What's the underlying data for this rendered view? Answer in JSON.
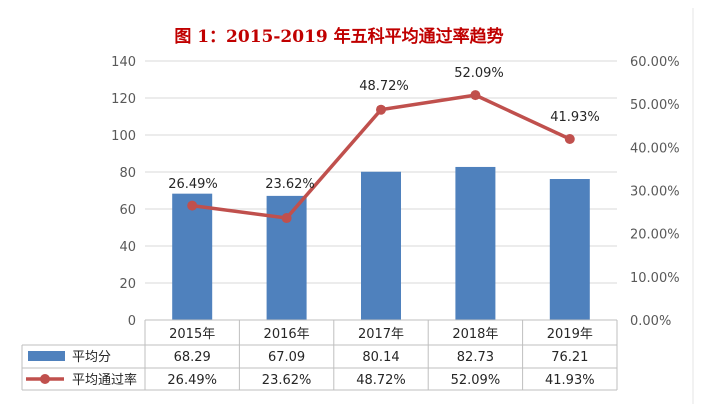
{
  "colors": {
    "bar": "#4f81bd",
    "line": "#c0504d",
    "title": "#c00000",
    "grid": "#d9d9d9",
    "table_border": "#bfbfbf"
  },
  "chart_data": {
    "type": "bar+line",
    "title": "图 1：2015-2019 年五科平均通过率趋势",
    "categories": [
      "2015年",
      "2016年",
      "2017年",
      "2018年",
      "2019年"
    ],
    "series": [
      {
        "name": "平均分",
        "type": "bar",
        "axis": "left",
        "values": [
          68.29,
          67.09,
          80.14,
          82.73,
          76.21
        ],
        "labels": [
          "68.29",
          "67.09",
          "80.14",
          "82.73",
          "76.21"
        ]
      },
      {
        "name": "平均通过率",
        "type": "line",
        "axis": "right",
        "values": [
          26.49,
          23.62,
          48.72,
          52.09,
          41.93
        ],
        "labels": [
          "26.49%",
          "23.62%",
          "48.72%",
          "52.09%",
          "41.93%"
        ]
      }
    ],
    "y_left": {
      "min": 0,
      "max": 140,
      "step": 20,
      "ticks": [
        "0",
        "20",
        "40",
        "60",
        "80",
        "100",
        "120",
        "140"
      ]
    },
    "y_right": {
      "min": 0,
      "max": 60,
      "step": 10,
      "ticks": [
        "0.00%",
        "10.00%",
        "20.00%",
        "30.00%",
        "40.00%",
        "50.00%",
        "60.00%"
      ]
    },
    "grid": true,
    "legend": "data-table"
  }
}
